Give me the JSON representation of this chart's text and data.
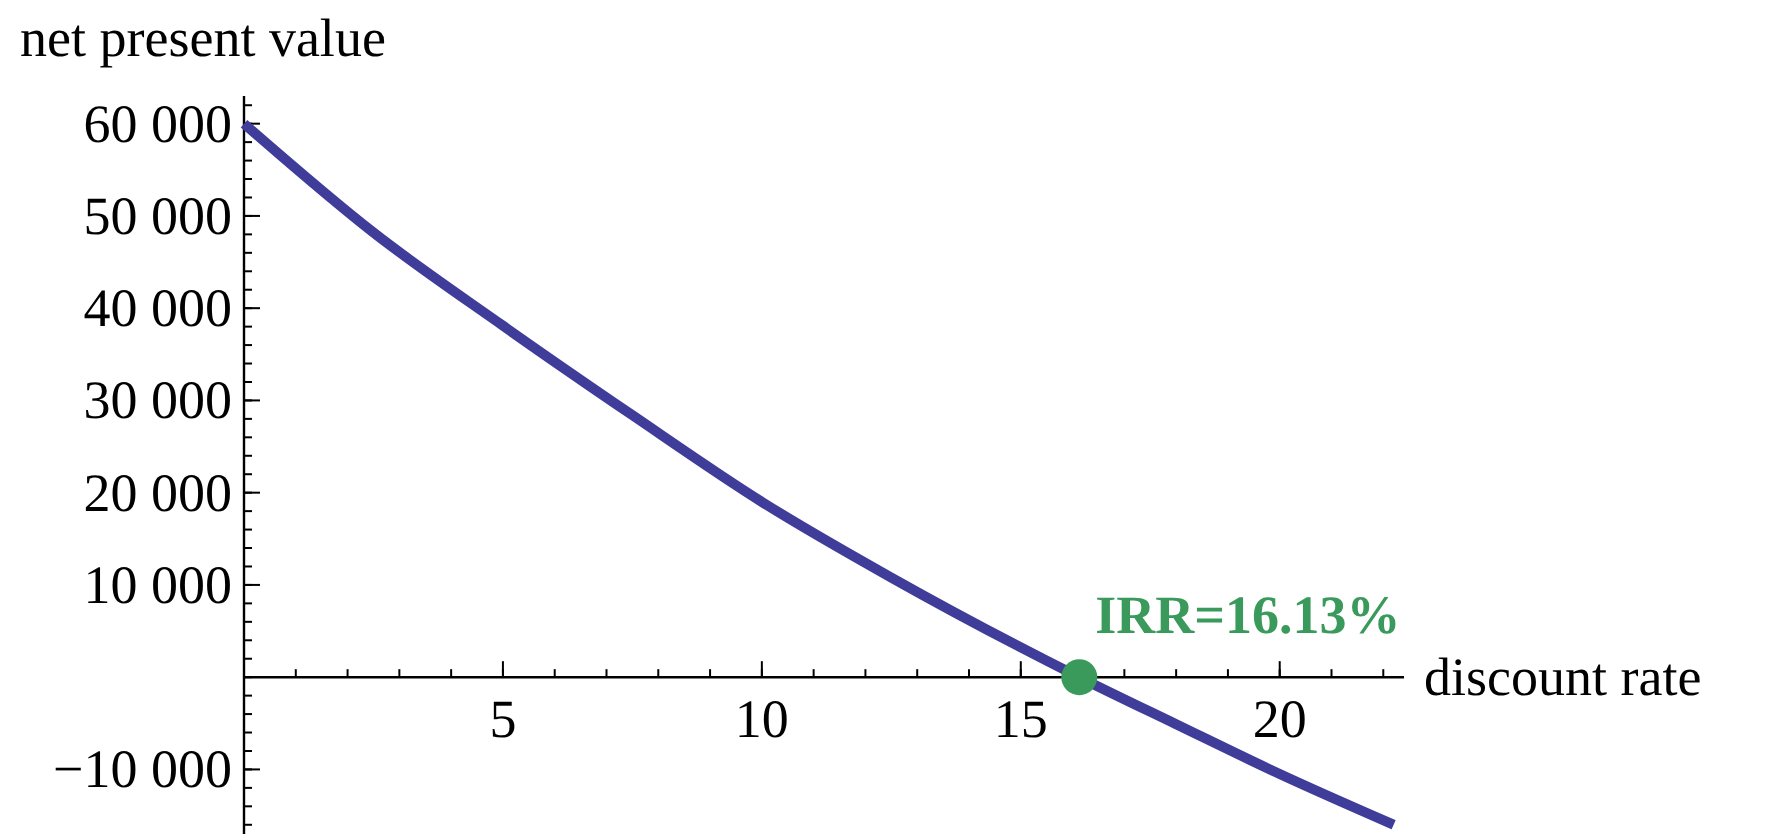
{
  "chart_data": {
    "type": "line",
    "xlabel": "discount rate",
    "ylabel": "net present value",
    "xlim": [
      0,
      22.4
    ],
    "ylim": [
      -17000,
      63000
    ],
    "xticks": [
      5,
      10,
      15,
      20
    ],
    "yticks": [
      {
        "value": -10000,
        "label": "−10 000"
      },
      {
        "value": 10000,
        "label": "10 000"
      },
      {
        "value": 20000,
        "label": "20 000"
      },
      {
        "value": 30000,
        "label": "30 000"
      },
      {
        "value": 40000,
        "label": "40 000"
      },
      {
        "value": 50000,
        "label": "50 000"
      },
      {
        "value": 60000,
        "label": "60 000"
      }
    ],
    "grid": false,
    "series": [
      {
        "color": "#3f3d99",
        "x": [
          0,
          2.5,
          5,
          7.5,
          10,
          12.5,
          16.13,
          18,
          20,
          22.2
        ],
        "values": [
          60000,
          48200,
          38100,
          28400,
          19000,
          10800,
          0,
          -5100,
          -10500,
          -16000
        ],
        "marker": "none"
      },
      {
        "type": "scatter",
        "color": "#3a9a5b",
        "x": [
          16.13
        ],
        "values": [
          0
        ],
        "marker": "circle"
      }
    ],
    "annotations": [
      {
        "text": "IRR=16.13%",
        "x": 16.13,
        "y": 0
      }
    ]
  }
}
